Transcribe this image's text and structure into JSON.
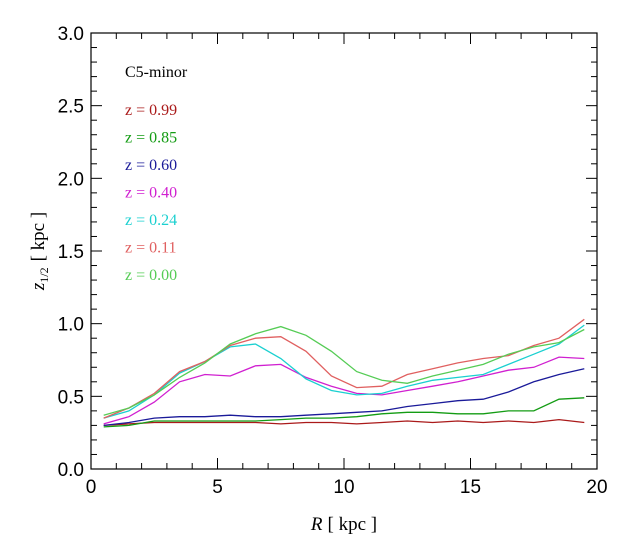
{
  "chart_data": {
    "type": "line",
    "title": "C5-minor",
    "xlabel": "R [ kpc ]",
    "ylabel": "z1/2 [ kpc ]",
    "xlabel_parts": {
      "var": "R",
      "unit": "[ kpc ]"
    },
    "ylabel_parts": {
      "var": "z",
      "sub": "1/2",
      "unit": "[ kpc ]"
    },
    "xlim": [
      0,
      20
    ],
    "ylim": [
      0.0,
      3.0
    ],
    "xticks": [
      0,
      5,
      10,
      15,
      20
    ],
    "xtick_labels": [
      "0",
      "5",
      "10",
      "15",
      "20"
    ],
    "yticks": [
      0.0,
      0.5,
      1.0,
      1.5,
      2.0,
      2.5,
      3.0
    ],
    "ytick_labels": [
      "0.0",
      "0.5",
      "1.0",
      "1.5",
      "2.0",
      "2.5",
      "3.0"
    ],
    "grid": false,
    "legend_position": "top-left",
    "x": [
      0.5,
      1.5,
      2.5,
      3.5,
      4.5,
      5.5,
      6.5,
      7.5,
      8.5,
      9.5,
      10.5,
      11.5,
      12.5,
      13.5,
      14.5,
      15.5,
      16.5,
      17.5,
      18.5,
      19.5
    ],
    "series": [
      {
        "name": "z = 0.99",
        "color": "#aa1a1a",
        "values": [
          0.3,
          0.31,
          0.32,
          0.32,
          0.32,
          0.32,
          0.32,
          0.31,
          0.32,
          0.32,
          0.31,
          0.32,
          0.33,
          0.32,
          0.33,
          0.32,
          0.33,
          0.32,
          0.34,
          0.32
        ]
      },
      {
        "name": "z = 0.85",
        "color": "#149c14",
        "values": [
          0.29,
          0.3,
          0.33,
          0.33,
          0.33,
          0.33,
          0.33,
          0.34,
          0.35,
          0.35,
          0.36,
          0.38,
          0.39,
          0.39,
          0.38,
          0.38,
          0.4,
          0.4,
          0.48,
          0.49
        ]
      },
      {
        "name": "z = 0.60",
        "color": "#1a1a99",
        "values": [
          0.3,
          0.32,
          0.35,
          0.36,
          0.36,
          0.37,
          0.36,
          0.36,
          0.37,
          0.38,
          0.39,
          0.4,
          0.43,
          0.45,
          0.47,
          0.48,
          0.53,
          0.6,
          0.65,
          0.69
        ]
      },
      {
        "name": "z = 0.40",
        "color": "#d020d0",
        "values": [
          0.31,
          0.36,
          0.46,
          0.6,
          0.65,
          0.64,
          0.71,
          0.72,
          0.63,
          0.57,
          0.52,
          0.51,
          0.54,
          0.57,
          0.6,
          0.64,
          0.68,
          0.7,
          0.77,
          0.76
        ]
      },
      {
        "name": "z = 0.24",
        "color": "#1ad0d0",
        "values": [
          0.35,
          0.4,
          0.51,
          0.66,
          0.74,
          0.84,
          0.86,
          0.76,
          0.62,
          0.54,
          0.51,
          0.52,
          0.57,
          0.61,
          0.63,
          0.65,
          0.72,
          0.79,
          0.86,
          0.99
        ]
      },
      {
        "name": "z = 0.11",
        "color": "#e06060",
        "values": [
          0.35,
          0.42,
          0.52,
          0.67,
          0.74,
          0.85,
          0.9,
          0.91,
          0.81,
          0.64,
          0.56,
          0.57,
          0.65,
          0.69,
          0.73,
          0.76,
          0.78,
          0.85,
          0.9,
          1.03
        ]
      },
      {
        "name": "z = 0.00",
        "color": "#55cc55",
        "values": [
          0.37,
          0.42,
          0.51,
          0.63,
          0.73,
          0.86,
          0.93,
          0.98,
          0.92,
          0.81,
          0.67,
          0.61,
          0.59,
          0.64,
          0.68,
          0.72,
          0.79,
          0.84,
          0.87,
          0.96
        ]
      }
    ]
  }
}
